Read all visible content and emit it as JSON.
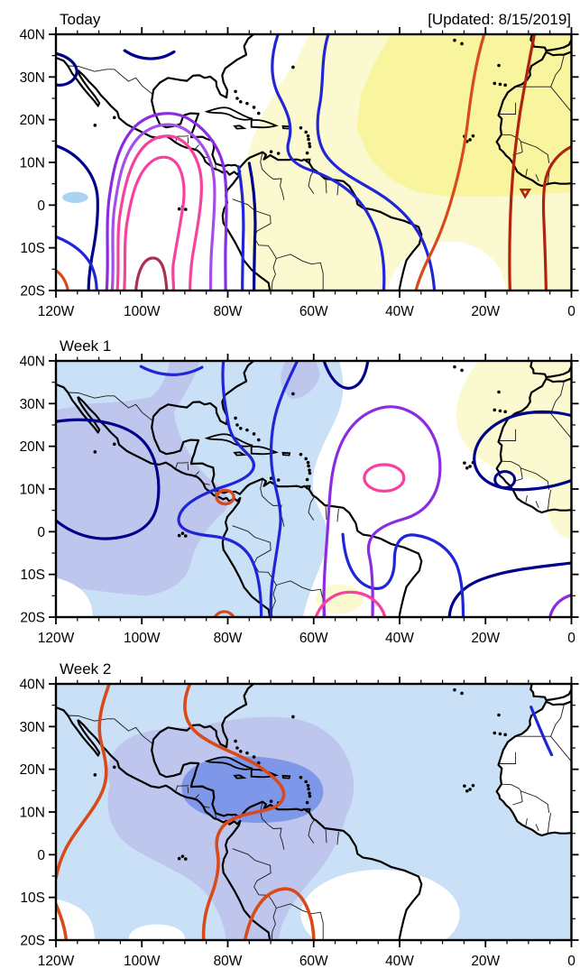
{
  "header": {
    "updated": "[Updated: 8/15/2019]"
  },
  "panels": [
    {
      "title": "Today"
    },
    {
      "title": "Week 1"
    },
    {
      "title": "Week 2"
    }
  ],
  "axes": {
    "lat_labels": [
      "40N",
      "30N",
      "20N",
      "10N",
      "0",
      "10S",
      "20S"
    ],
    "lat_values": [
      40,
      30,
      20,
      10,
      0,
      -10,
      -20
    ],
    "lon_labels": [
      "120W",
      "100W",
      "80W",
      "60W",
      "40W",
      "20W",
      "0"
    ],
    "lon_values": [
      -120,
      -100,
      -80,
      -60,
      -40,
      -20,
      0
    ],
    "minor_step_deg": 5,
    "lat_range": [
      40,
      -20
    ],
    "lon_range": [
      -120,
      0
    ]
  },
  "colors": {
    "frame": "#000000",
    "coast": "#000000",
    "border": "#1a1a1a",
    "shade_yellow": "#F8F59E",
    "shade_yellow_pale": "#FBF9CF",
    "shade_blue_light": "#C9E0F7",
    "shade_blue_medium": "#BFC6EE",
    "shade_blue_dark": "#7E97E8",
    "shade_blue_spot": "#A9D3F1",
    "white": "#FFFFFF",
    "contour_navy": "#00008B",
    "contour_blue": "#2025D8",
    "contour_purple": "#8B2BE2",
    "contour_violet": "#A44FE8",
    "contour_pink": "#F6419E",
    "contour_maroon": "#A93158",
    "contour_orange": "#D94A1A",
    "contour_brick": "#B22210"
  },
  "map_data": {
    "type": "contour-map",
    "lon_range_deg": [
      -120,
      0
    ],
    "lat_range_deg": [
      -20,
      40
    ],
    "region": "Tropical Americas, Atlantic and West Africa",
    "panels": [
      {
        "title": "Today",
        "shading": [
          {
            "color_key": "shade_yellow_pale",
            "area": "central/eastern Atlantic, Caribbean rim and northern South America"
          },
          {
            "color_key": "shade_yellow",
            "area": "eastern Atlantic and West Africa north of the equator"
          },
          {
            "color_key": "shade_blue_spot",
            "area": "small patch in east Pacific near 115W, 2N"
          }
        ],
        "contours": [
          {
            "color_key": "contour_navy",
            "desc": "arcs near 35N over US and long line down east Pacific; line along Peru coast"
          },
          {
            "color_key": "contour_blue",
            "desc": "two lines from 40N near 68W/57W sweeping southeast across Brazil; line in SE Pacific"
          },
          {
            "color_key": "contour_purple",
            "desc": "broad arch over Mexico/Gulf with legs to 20S"
          },
          {
            "color_key": "contour_violet",
            "desc": "arch nested inside purple"
          },
          {
            "color_key": "contour_pink",
            "desc": "two nested arches over Mexico/Central America down east Pacific"
          },
          {
            "color_key": "contour_maroon",
            "desc": "innermost closed arc near 97W, 16S"
          },
          {
            "color_key": "contour_orange",
            "desc": "line from 20W,40N curving to 36W,20S; short arc lower-left corner"
          },
          {
            "color_key": "contour_brick",
            "desc": "two lines over West Africa/east Atlantic; tiny closed triangle near 10W,2N"
          }
        ]
      },
      {
        "title": "Week 1",
        "shading": [
          {
            "color_key": "shade_blue_light",
            "area": "most of map west of about 55W"
          },
          {
            "color_key": "shade_blue_medium",
            "area": "east Pacific, Mexico, Central America and a lobe near 90W top edge"
          },
          {
            "color_key": "shade_yellow_pale",
            "area": "northwest Africa and small oval near 54W, 16S"
          }
        ],
        "contours": [
          {
            "color_key": "contour_navy",
            "desc": "closed oval in east Pacific near 105W,12N; dip near 53W,32N; C-shape hugging West Africa with loop near Senegal; curve lower right"
          },
          {
            "color_key": "contour_blue",
            "desc": "arc near 93W,38N; lines through Florida and 69W into deep tropics; U near 47W,12S"
          },
          {
            "color_key": "contour_purple",
            "desc": "large open loop centered near 44W,15N reaching to 20S; small arc bottom-right corner"
          },
          {
            "color_key": "contour_pink",
            "desc": "closed oval near 44W,12N; arch at bottom near 51W,17S"
          },
          {
            "color_key": "contour_orange",
            "desc": "small closed oval at Panama near 80W,8N; small bump on bottom edge near 80W"
          }
        ]
      },
      {
        "title": "Week 2",
        "shading": [
          {
            "color_key": "shade_blue_light",
            "area": "almost entire map; white over north Africa, NE Brazil oval and two bottom-left pockets"
          },
          {
            "color_key": "shade_blue_medium",
            "area": "Mexico to tropical Atlantic with arm down eastern South America"
          },
          {
            "color_key": "shade_blue_dark",
            "area": "oval over the Caribbean near 74W,15N"
          }
        ],
        "contours": [
          {
            "color_key": "contour_orange",
            "desc": "line from 108W,40N down east Pacific; hooked line from 89W,40N through Caribbean and Central America to 20S; arch near 67W,8S"
          },
          {
            "color_key": "contour_blue",
            "desc": "short arc over NW Africa near 6W,28N"
          }
        ]
      }
    ]
  }
}
